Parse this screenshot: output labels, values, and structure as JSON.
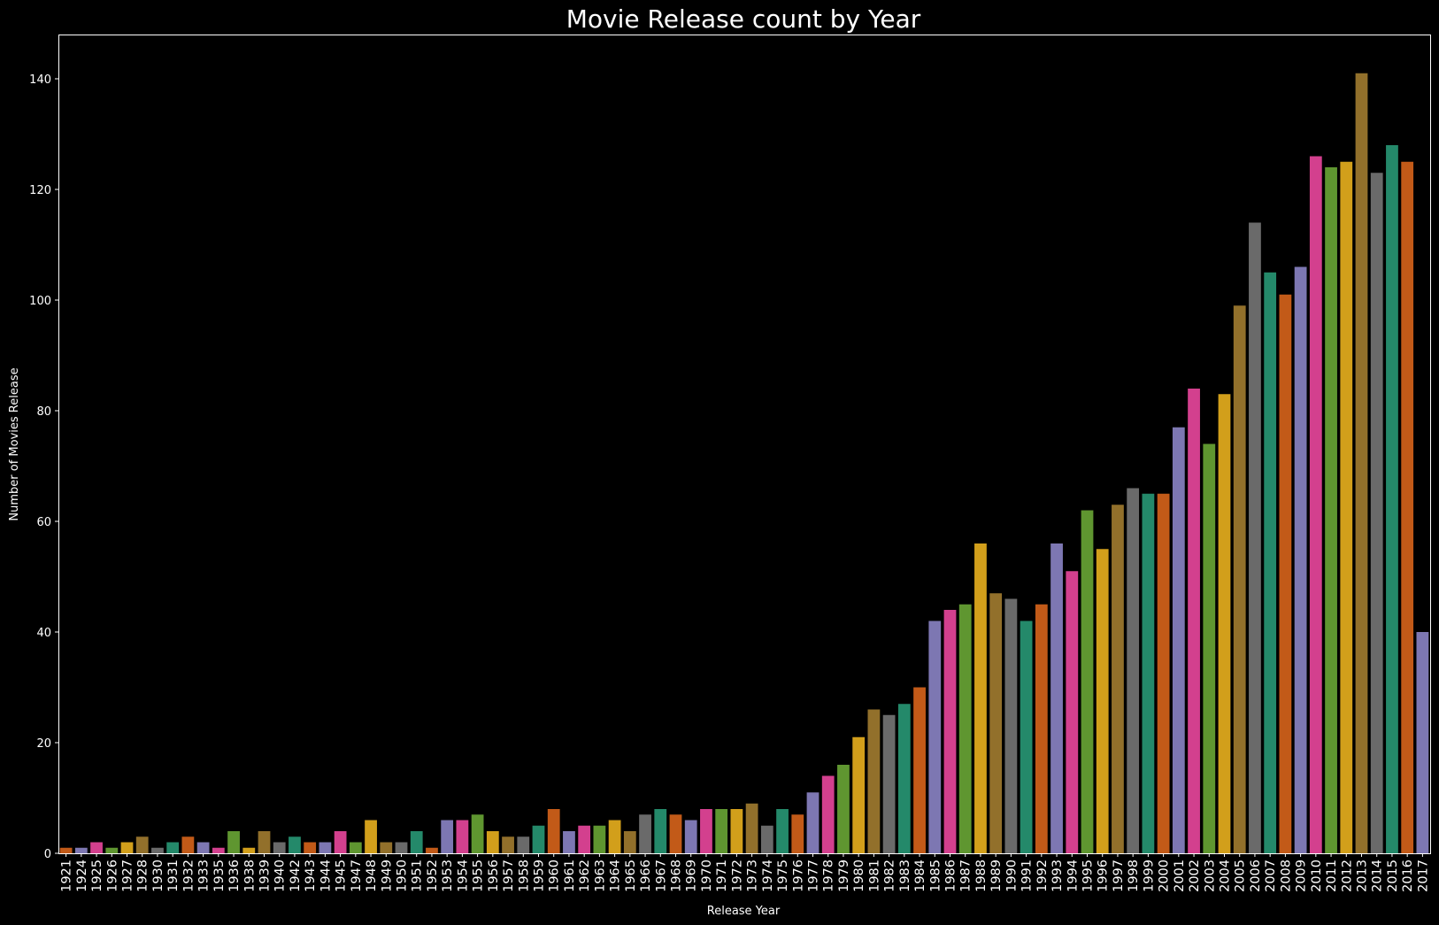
{
  "chart_data": {
    "type": "bar",
    "title": "Movie Release count by Year",
    "xlabel": "Release Year",
    "ylabel": "Number of Movies Release",
    "ylim": [
      0,
      148
    ],
    "yticks": [
      0,
      20,
      40,
      60,
      80,
      100,
      120,
      140
    ],
    "grid": false,
    "categories": [
      "1921",
      "1924",
      "1925",
      "1926",
      "1927",
      "1928",
      "1930",
      "1931",
      "1932",
      "1933",
      "1935",
      "1936",
      "1938",
      "1939",
      "1940",
      "1942",
      "1943",
      "1944",
      "1945",
      "1947",
      "1948",
      "1949",
      "1950",
      "1951",
      "1952",
      "1953",
      "1954",
      "1955",
      "1956",
      "1957",
      "1958",
      "1959",
      "1960",
      "1961",
      "1962",
      "1963",
      "1964",
      "1965",
      "1966",
      "1967",
      "1968",
      "1969",
      "1970",
      "1971",
      "1972",
      "1973",
      "1974",
      "1975",
      "1976",
      "1977",
      "1978",
      "1979",
      "1980",
      "1981",
      "1982",
      "1983",
      "1984",
      "1985",
      "1986",
      "1987",
      "1988",
      "1989",
      "1990",
      "1991",
      "1992",
      "1993",
      "1994",
      "1995",
      "1996",
      "1997",
      "1998",
      "1999",
      "2000",
      "2001",
      "2002",
      "2003",
      "2004",
      "2005",
      "2006",
      "2007",
      "2008",
      "2009",
      "2010",
      "2011",
      "2012",
      "2013",
      "2014",
      "2015",
      "2016",
      "2017"
    ],
    "values": [
      1,
      1,
      2,
      1,
      2,
      3,
      1,
      2,
      3,
      2,
      1,
      4,
      1,
      4,
      2,
      3,
      2,
      2,
      4,
      2,
      6,
      2,
      2,
      4,
      1,
      6,
      6,
      7,
      4,
      3,
      3,
      5,
      8,
      4,
      5,
      5,
      6,
      4,
      7,
      8,
      7,
      6,
      8,
      8,
      8,
      9,
      5,
      8,
      7,
      11,
      14,
      16,
      21,
      26,
      25,
      27,
      30,
      42,
      44,
      45,
      56,
      47,
      46,
      42,
      45,
      56,
      51,
      62,
      55,
      63,
      66,
      65,
      65,
      77,
      84,
      74,
      83,
      99,
      114,
      105,
      101,
      106,
      126,
      124,
      125,
      141,
      123,
      128,
      125,
      40
    ],
    "palette": [
      "#c25a18",
      "#7d77b2",
      "#d3408e",
      "#5f9630",
      "#d29f1b",
      "#92702b",
      "#6a6a6a",
      "#24896a"
    ]
  }
}
